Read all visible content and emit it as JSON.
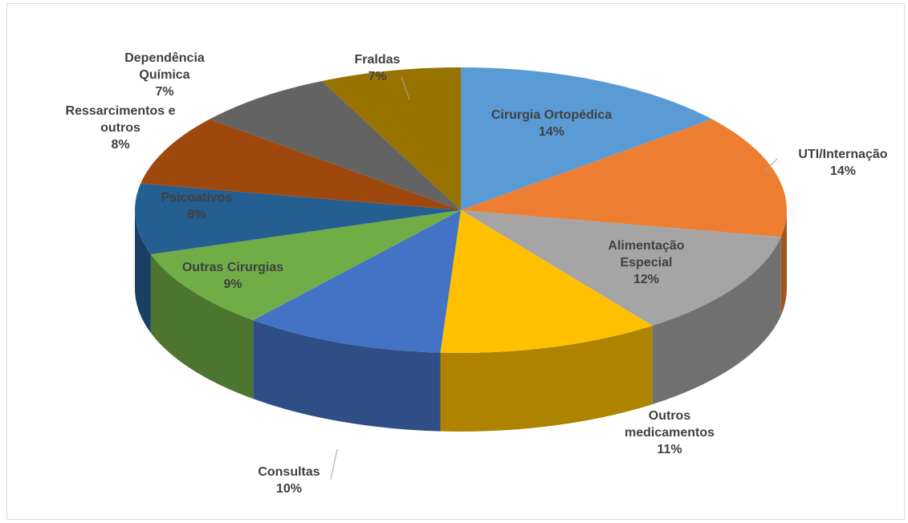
{
  "chart_data": {
    "type": "pie",
    "categories": [
      "Cirurgia Ortopédica",
      "UTI/Internação",
      "Alimentação Especial",
      "Outros medicamentos",
      "Consultas",
      "Outras Cirurgias",
      "Psicoativos",
      "Ressarcimentos e outros",
      "Dependência Química",
      "Fraldas"
    ],
    "values": [
      14,
      14,
      12,
      11,
      10,
      9,
      8,
      8,
      7,
      7
    ],
    "value_labels": [
      "14%",
      "14%",
      "12%",
      "11%",
      "10%",
      "9%",
      "8%",
      "8%",
      "7%",
      "7%"
    ],
    "colors": [
      "#5b9bd5",
      "#ed7d31",
      "#a5a5a5",
      "#ffc000",
      "#4472c4",
      "#70ad47",
      "#255e91",
      "#9e480e",
      "#636363",
      "#997300"
    ]
  }
}
